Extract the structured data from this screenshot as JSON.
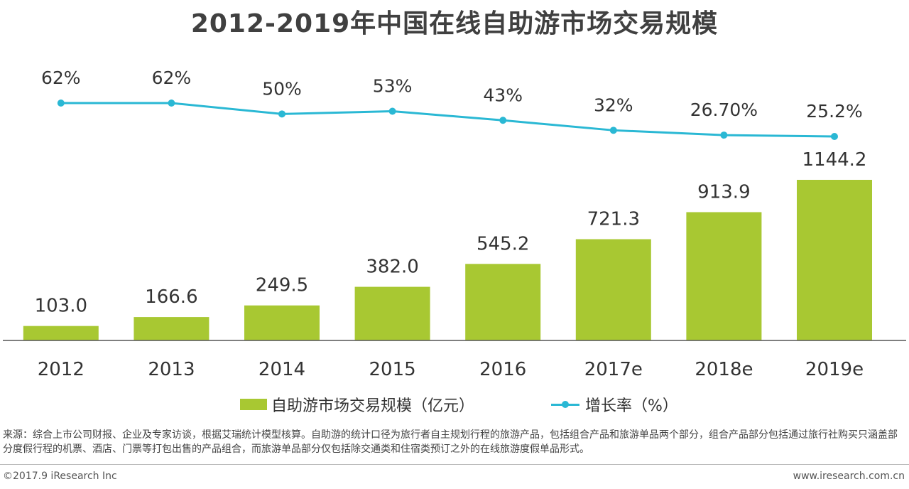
{
  "title": "2012-2019年中国在线自助游市场交易规模",
  "chart_data": {
    "type": "bar",
    "categories": [
      "2012",
      "2013",
      "2014",
      "2015",
      "2016",
      "2017e",
      "2018e",
      "2019e"
    ],
    "series": [
      {
        "name": "自助游市场交易规模（亿元）",
        "type": "bar",
        "values": [
          103.0,
          166.6,
          249.5,
          382.0,
          545.2,
          721.3,
          913.9,
          1144.2
        ],
        "labels": [
          "103.0",
          "166.6",
          "249.5",
          "382.0",
          "545.2",
          "721.3",
          "913.9",
          "1144.2"
        ],
        "color": "#a8c832"
      },
      {
        "name": "增长率（%）",
        "type": "line",
        "values": [
          62,
          62,
          50,
          53,
          43,
          32,
          26.7,
          25.2
        ],
        "labels": [
          "62%",
          "62%",
          "50%",
          "53%",
          "43%",
          "32%",
          "26.70%",
          "25.2%"
        ],
        "color": "#2ab8d4"
      }
    ],
    "grid": false,
    "legend": "bottom"
  },
  "legend": {
    "bar_label": "自助游市场交易规模（亿元）",
    "line_label": "增长率（%）"
  },
  "source_text": "来源：综合上市公司财报、企业及专家访谈，根据艾瑞统计模型核算。自助游的统计口径为旅行者自主规划行程的旅游产品，包括组合产品和旅游单品两个部分，组合产品部分包括通过旅行社购买只涵盖部分度假行程的机票、酒店、门票等打包出售的产品组合，而旅游单品部分仅包括除交通类和住宿类预订之外的在线旅游度假单品形式。",
  "footer": {
    "copyright": "©2017.9 iResearch Inc",
    "website": "www.iresearch.com.cn"
  }
}
